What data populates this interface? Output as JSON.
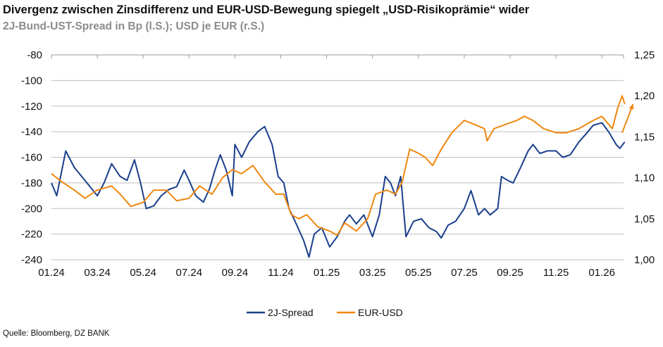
{
  "title": "Divergenz zwischen Zinsdifferenz und EUR-USD-Bewegung spiegelt „USD-Risikoprämie“ wider",
  "subtitle": "2J-Bund-UST-Spread in Bp (l.S.); USD je EUR (r.S.)",
  "source": "Quelle: Bloomberg, DZ BANK",
  "chart_data": {
    "type": "line",
    "title": "Divergenz zwischen Zinsdifferenz und EUR-USD-Bewegung spiegelt „USD-Risikoprämie“ wider",
    "subtitle": "2J-Bund-UST-Spread in Bp (l.S.); USD je EUR (r.S.)",
    "grid": true,
    "legend_position": "bottom",
    "x_range": [
      "2024-01-01",
      "2026-02-15"
    ],
    "x_ticks": [
      "01.24",
      "03.24",
      "05.24",
      "07.24",
      "09.24",
      "11.24",
      "01.25",
      "03.25",
      "05.25",
      "07.25",
      "09.25",
      "11.25",
      "01.26"
    ],
    "y_left": {
      "range": [
        -240,
        -80
      ],
      "ticks": [
        "-80",
        "-100",
        "-120",
        "-140",
        "-160",
        "-180",
        "-200",
        "-220",
        "-240"
      ]
    },
    "y_right": {
      "range": [
        1.0,
        1.25
      ],
      "ticks": [
        "1,25",
        "1,20",
        "1,15",
        "1,10",
        "1,05",
        "1,00"
      ]
    },
    "series": [
      {
        "name": "2J-Spread",
        "axis": "left",
        "color": "#1a3f8c",
        "points": [
          [
            "2024-01-01",
            -180
          ],
          [
            "2024-01-08",
            -190
          ],
          [
            "2024-01-20",
            -155
          ],
          [
            "2024-02-01",
            -168
          ],
          [
            "2024-02-15",
            -178
          ],
          [
            "2024-03-01",
            -190
          ],
          [
            "2024-03-10",
            -180
          ],
          [
            "2024-03-20",
            -165
          ],
          [
            "2024-04-01",
            -175
          ],
          [
            "2024-04-10",
            -178
          ],
          [
            "2024-04-20",
            -162
          ],
          [
            "2024-04-28",
            -180
          ],
          [
            "2024-05-05",
            -200
          ],
          [
            "2024-05-15",
            -198
          ],
          [
            "2024-05-25",
            -190
          ],
          [
            "2024-06-05",
            -185
          ],
          [
            "2024-06-15",
            -183
          ],
          [
            "2024-06-25",
            -170
          ],
          [
            "2024-07-01",
            -178
          ],
          [
            "2024-07-10",
            -190
          ],
          [
            "2024-07-20",
            -195
          ],
          [
            "2024-07-28",
            -185
          ],
          [
            "2024-08-05",
            -170
          ],
          [
            "2024-08-12",
            -158
          ],
          [
            "2024-08-20",
            -170
          ],
          [
            "2024-08-28",
            -190
          ],
          [
            "2024-09-01",
            -150
          ],
          [
            "2024-09-10",
            -160
          ],
          [
            "2024-09-20",
            -148
          ],
          [
            "2024-10-01",
            -140
          ],
          [
            "2024-10-10",
            -136
          ],
          [
            "2024-10-20",
            -150
          ],
          [
            "2024-10-28",
            -175
          ],
          [
            "2024-11-05",
            -180
          ],
          [
            "2024-11-12",
            -200
          ],
          [
            "2024-11-20",
            -210
          ],
          [
            "2024-12-01",
            -225
          ],
          [
            "2024-12-08",
            -238
          ],
          [
            "2024-12-15",
            -220
          ],
          [
            "2024-12-25",
            -215
          ],
          [
            "2025-01-05",
            -230
          ],
          [
            "2025-01-15",
            -222
          ],
          [
            "2025-01-25",
            -210
          ],
          [
            "2025-02-01",
            -205
          ],
          [
            "2025-02-10",
            -212
          ],
          [
            "2025-02-20",
            -205
          ],
          [
            "2025-03-01",
            -222
          ],
          [
            "2025-03-10",
            -205
          ],
          [
            "2025-03-18",
            -175
          ],
          [
            "2025-03-25",
            -180
          ],
          [
            "2025-04-01",
            -190
          ],
          [
            "2025-04-08",
            -175
          ],
          [
            "2025-04-15",
            -222
          ],
          [
            "2025-04-25",
            -210
          ],
          [
            "2025-05-05",
            -208
          ],
          [
            "2025-05-15",
            -215
          ],
          [
            "2025-05-25",
            -218
          ],
          [
            "2025-06-01",
            -223
          ],
          [
            "2025-06-10",
            -213
          ],
          [
            "2025-06-20",
            -210
          ],
          [
            "2025-07-01",
            -200
          ],
          [
            "2025-07-10",
            -186
          ],
          [
            "2025-07-20",
            -205
          ],
          [
            "2025-07-28",
            -200
          ],
          [
            "2025-08-05",
            -205
          ],
          [
            "2025-08-15",
            -200
          ],
          [
            "2025-08-20",
            -175
          ],
          [
            "2025-08-28",
            -178
          ],
          [
            "2025-09-05",
            -180
          ],
          [
            "2025-09-15",
            -168
          ],
          [
            "2025-09-25",
            -155
          ],
          [
            "2025-10-01",
            -150
          ],
          [
            "2025-10-10",
            -157
          ],
          [
            "2025-10-20",
            -155
          ],
          [
            "2025-11-01",
            -155
          ],
          [
            "2025-11-10",
            -160
          ],
          [
            "2025-11-20",
            -158
          ],
          [
            "2025-12-01",
            -148
          ],
          [
            "2025-12-10",
            -142
          ],
          [
            "2025-12-20",
            -135
          ],
          [
            "2026-01-01",
            -133
          ],
          [
            "2026-01-10",
            -140
          ],
          [
            "2026-01-20",
            -150
          ],
          [
            "2026-01-25",
            -153
          ],
          [
            "2026-02-01",
            -148
          ]
        ]
      },
      {
        "name": "EUR-USD",
        "axis": "right",
        "color": "#f0870f",
        "points": [
          [
            "2024-01-01",
            1.105
          ],
          [
            "2024-01-15",
            1.095
          ],
          [
            "2024-02-01",
            1.085
          ],
          [
            "2024-02-15",
            1.075
          ],
          [
            "2024-03-01",
            1.085
          ],
          [
            "2024-03-20",
            1.09
          ],
          [
            "2024-04-01",
            1.08
          ],
          [
            "2024-04-15",
            1.065
          ],
          [
            "2024-05-01",
            1.07
          ],
          [
            "2024-05-15",
            1.085
          ],
          [
            "2024-06-01",
            1.085
          ],
          [
            "2024-06-15",
            1.072
          ],
          [
            "2024-07-01",
            1.075
          ],
          [
            "2024-07-15",
            1.09
          ],
          [
            "2024-08-01",
            1.08
          ],
          [
            "2024-08-15",
            1.1
          ],
          [
            "2024-08-28",
            1.11
          ],
          [
            "2024-09-10",
            1.105
          ],
          [
            "2024-09-25",
            1.115
          ],
          [
            "2024-10-10",
            1.095
          ],
          [
            "2024-10-25",
            1.08
          ],
          [
            "2024-11-05",
            1.08
          ],
          [
            "2024-11-15",
            1.055
          ],
          [
            "2024-11-25",
            1.05
          ],
          [
            "2024-12-05",
            1.055
          ],
          [
            "2024-12-20",
            1.04
          ],
          [
            "2025-01-05",
            1.035
          ],
          [
            "2025-01-15",
            1.03
          ],
          [
            "2025-01-25",
            1.045
          ],
          [
            "2025-02-10",
            1.035
          ],
          [
            "2025-02-25",
            1.05
          ],
          [
            "2025-03-05",
            1.08
          ],
          [
            "2025-03-20",
            1.085
          ],
          [
            "2025-04-01",
            1.08
          ],
          [
            "2025-04-10",
            1.095
          ],
          [
            "2025-04-20",
            1.135
          ],
          [
            "2025-05-01",
            1.13
          ],
          [
            "2025-05-10",
            1.125
          ],
          [
            "2025-05-20",
            1.115
          ],
          [
            "2025-06-01",
            1.135
          ],
          [
            "2025-06-15",
            1.155
          ],
          [
            "2025-07-01",
            1.17
          ],
          [
            "2025-07-15",
            1.165
          ],
          [
            "2025-07-28",
            1.16
          ],
          [
            "2025-08-01",
            1.145
          ],
          [
            "2025-08-10",
            1.16
          ],
          [
            "2025-08-25",
            1.165
          ],
          [
            "2025-09-10",
            1.17
          ],
          [
            "2025-09-20",
            1.175
          ],
          [
            "2025-10-01",
            1.17
          ],
          [
            "2025-10-15",
            1.16
          ],
          [
            "2025-11-01",
            1.155
          ],
          [
            "2025-11-15",
            1.155
          ],
          [
            "2025-12-01",
            1.16
          ],
          [
            "2025-12-20",
            1.17
          ],
          [
            "2026-01-01",
            1.175
          ],
          [
            "2026-01-15",
            1.16
          ],
          [
            "2026-01-22",
            1.185
          ],
          [
            "2026-01-28",
            1.2
          ],
          [
            "2026-02-01",
            1.19
          ]
        ]
      }
    ],
    "annotations": [
      {
        "type": "arrow",
        "series": "EUR-USD",
        "from": [
          "2026-01-28",
          1.155
        ],
        "to": [
          "2026-02-12",
          1.19
        ],
        "color": "#f0870f"
      }
    ]
  }
}
